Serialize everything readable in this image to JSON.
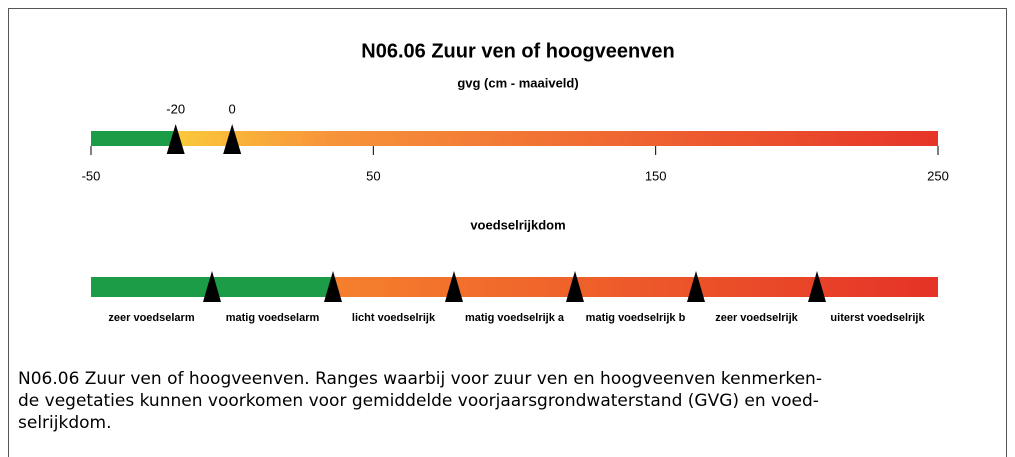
{
  "title": "N06.06 Zuur ven of hoogveenven",
  "gvg": {
    "label": "gvg (cm - maaiveld)",
    "xlim": [
      -50,
      250
    ],
    "xticks": [
      -50,
      50,
      150,
      250
    ],
    "markers": [
      -20,
      0
    ]
  },
  "voedselrijkdom": {
    "label": "voedselrijkdom",
    "classes": [
      "zeer voedselarm",
      "matig voedselarm",
      "licht voedselrijk",
      "matig voedselrijk a",
      "matig voedselrijk b",
      "zeer voedselrijk",
      "uiterst voedselrijk"
    ]
  },
  "caption": [
    "N06.06 Zuur ven of hoogveenven. Ranges waarbij voor zuur ven en hoogveenven kenmerken-",
    "de vegetaties kunnen voorkomen voor gemiddelde voorjaarsgrondwaterstand (GVG) en voed-",
    "selrijkdom."
  ]
}
